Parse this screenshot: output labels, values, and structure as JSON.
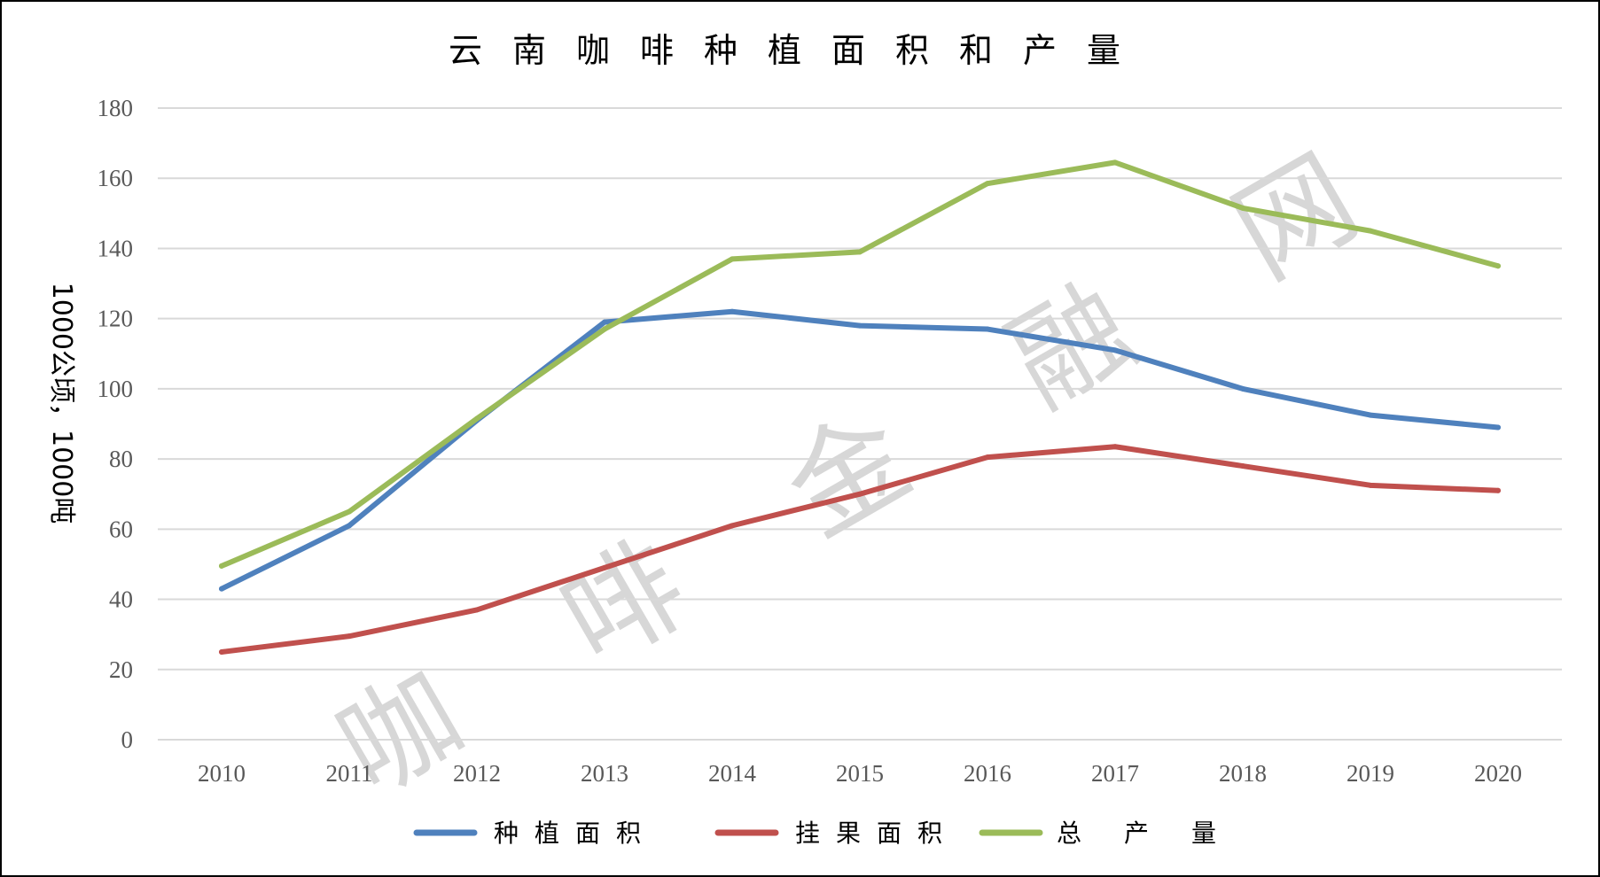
{
  "colors": {
    "series_1": "#4f81bd",
    "series_2": "#c0504d",
    "series_3": "#9bbb59",
    "grid": "#d9d9d9",
    "frame": "#000000"
  },
  "watermark": "咖 啡 金 融 网",
  "chart_data": {
    "type": "line",
    "title": "云南咖啡种植面积和产量",
    "xlabel": "",
    "ylabel": "1000公顷，1000吨",
    "ylim": [
      0,
      180
    ],
    "yticks": [
      "0",
      "20",
      "40",
      "60",
      "80",
      "100",
      "120",
      "140",
      "160",
      "180"
    ],
    "categories": [
      "2010",
      "2011",
      "2012",
      "2013",
      "2014",
      "2015",
      "2016",
      "2017",
      "2018",
      "2019",
      "2020"
    ],
    "grid": true,
    "legend_position": "bottom",
    "series": [
      {
        "name": "种植面积",
        "values": [
          43,
          61,
          91,
          119,
          122,
          118,
          117,
          111,
          100,
          92.5,
          89
        ]
      },
      {
        "name": "挂果面积",
        "values": [
          25,
          29.5,
          37,
          49,
          61,
          70,
          80.5,
          83.5,
          78,
          72.5,
          71
        ]
      },
      {
        "name": "总　产　量",
        "values": [
          49.5,
          65,
          91.5,
          117,
          137,
          139,
          158.5,
          164.5,
          151.5,
          145,
          135
        ]
      }
    ]
  }
}
